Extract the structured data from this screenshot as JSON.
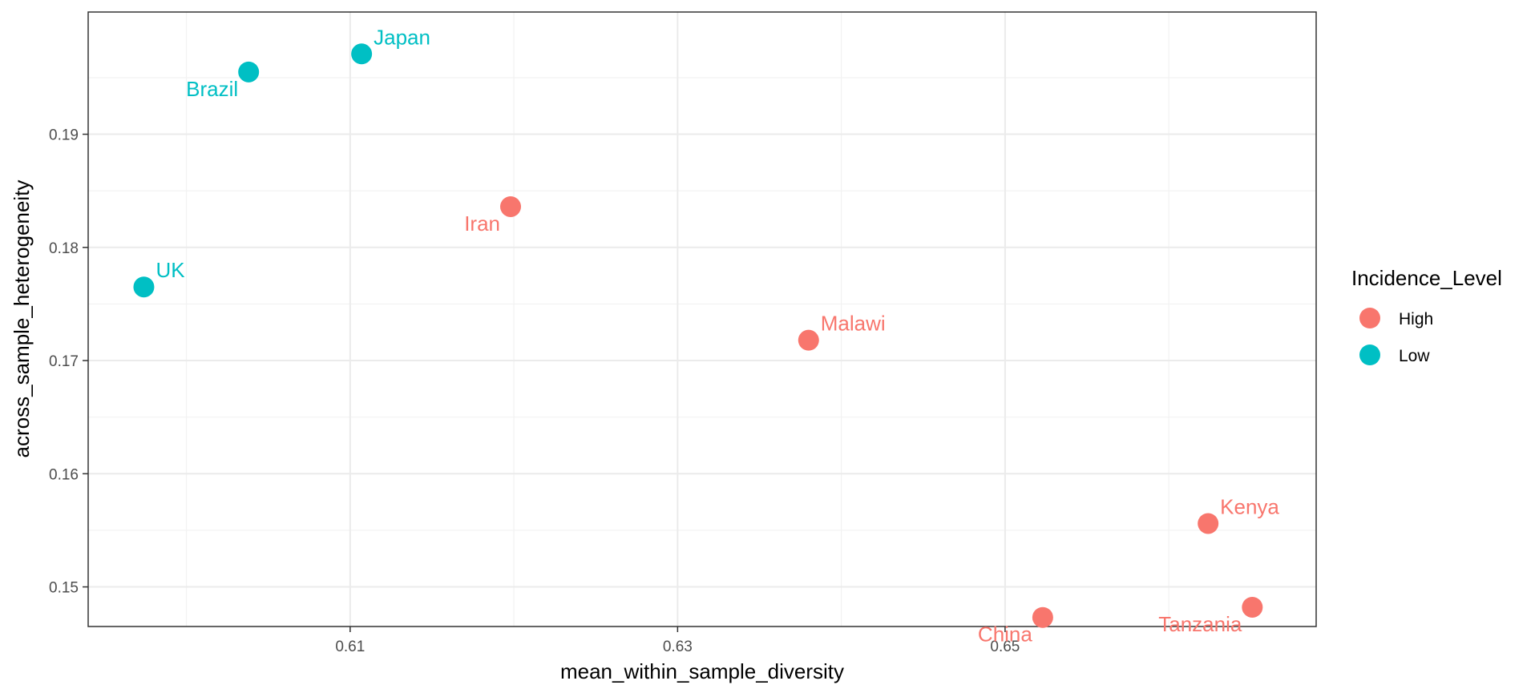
{
  "chart_data": {
    "type": "scatter",
    "title": "",
    "xlabel": "mean_within_sample_diversity",
    "ylabel": "across_sample_heterogeneity",
    "xlim": [
      0.594,
      0.669
    ],
    "ylim": [
      0.1465,
      0.2008
    ],
    "x_ticks": [
      0.61,
      0.63,
      0.65
    ],
    "x_tick_labels": [
      "0.61",
      "0.63",
      "0.65"
    ],
    "y_ticks": [
      0.15,
      0.16,
      0.17,
      0.18,
      0.19
    ],
    "y_tick_labels": [
      "0.15",
      "0.16",
      "0.17",
      "0.18",
      "0.19"
    ],
    "grid": true,
    "legend": {
      "title": "Incidence_Level",
      "placement": "right",
      "entries": [
        {
          "name": "High",
          "color": "#F8766D"
        },
        {
          "name": "Low",
          "color": "#00BFC4"
        }
      ]
    },
    "points": [
      {
        "label": "Japan",
        "x": 0.6107,
        "y": 0.1971,
        "group": "Low",
        "label_side": "upper-right"
      },
      {
        "label": "Brazil",
        "x": 0.6038,
        "y": 0.1955,
        "group": "Low",
        "label_side": "lower-left"
      },
      {
        "label": "UK",
        "x": 0.5974,
        "y": 0.1765,
        "group": "Low",
        "label_side": "upper-right"
      },
      {
        "label": "Iran",
        "x": 0.6198,
        "y": 0.1836,
        "group": "High",
        "label_side": "lower-left"
      },
      {
        "label": "Malawi",
        "x": 0.638,
        "y": 0.1718,
        "group": "High",
        "label_side": "upper-right"
      },
      {
        "label": "Kenya",
        "x": 0.6624,
        "y": 0.1556,
        "group": "High",
        "label_side": "upper-right"
      },
      {
        "label": "China",
        "x": 0.6523,
        "y": 0.1473,
        "group": "High",
        "label_side": "lower-left"
      },
      {
        "label": "Tanzania",
        "x": 0.6651,
        "y": 0.1482,
        "group": "High",
        "label_side": "lower-left"
      }
    ]
  }
}
